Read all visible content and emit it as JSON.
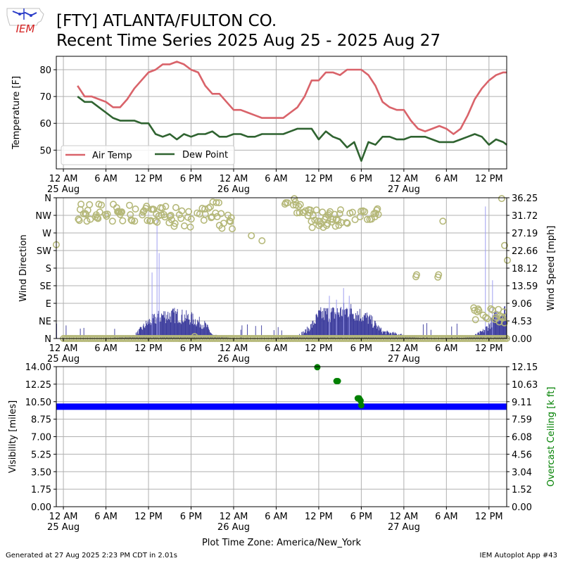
{
  "header": {
    "station_line": "[FTY] ATLANTA/FULTON CO.",
    "range_line": "Recent Time Series 2025 Aug 25 - 2025 Aug 27"
  },
  "logo": {
    "text": "IEM",
    "color": "#d42020"
  },
  "footer": {
    "generated": "Generated at 27 Aug 2025 2:23 PM CDT in 2.01s",
    "app": "IEM Autoplot App #43",
    "timezone_label": "Plot Time Zone: America/New_York"
  },
  "colors": {
    "temp": "#d9636a",
    "dew": "#2f6330",
    "wind_bar": "#3a3a9c",
    "gust_line": "#9f9ff0",
    "wind_dir": "#b5b879",
    "visibility": "#0000ff",
    "ceiling": "#008000",
    "grid": "#b0b0b0"
  },
  "x_axis": {
    "tick_labels": [
      "12 AM",
      "6 AM",
      "12 PM",
      "6 PM",
      "12 AM",
      "6 AM",
      "12 PM",
      "6 PM",
      "12 AM",
      "6 AM",
      "12 PM"
    ],
    "day_labels": [
      "25 Aug",
      "26 Aug",
      "27 Aug"
    ]
  },
  "chart_data": [
    {
      "type": "line",
      "ylabel": "Temperature [F]",
      "ylim": [
        43,
        85
      ],
      "yticks": [
        "50",
        "60",
        "70",
        "80"
      ],
      "xlim_hours": [
        -1,
        62.5
      ],
      "grid": true,
      "legend": "lower-left",
      "series": [
        {
          "name": "Air Temp",
          "x": [
            2,
            3,
            4,
            5,
            6,
            7,
            8,
            9,
            10,
            11,
            12,
            13,
            14,
            15,
            16,
            17,
            18,
            19,
            20,
            21,
            22,
            23,
            24,
            25,
            26,
            27,
            28,
            29,
            30,
            31,
            32,
            33,
            34,
            35,
            36,
            37,
            38,
            39,
            40,
            41,
            42,
            43,
            44,
            45,
            46,
            47,
            48,
            49,
            50,
            51,
            52,
            53,
            54,
            55,
            56,
            57,
            58,
            59,
            60,
            61,
            62,
            62.5
          ],
          "values": [
            74,
            70,
            70,
            69,
            68,
            66,
            66,
            69,
            73,
            76,
            79,
            80,
            82,
            82,
            83,
            82,
            80,
            79,
            74,
            71,
            71,
            68,
            65,
            65,
            64,
            63,
            62,
            62,
            62,
            62,
            64,
            66,
            70,
            76,
            76,
            79,
            79,
            78,
            80,
            80,
            80,
            78,
            74,
            68,
            66,
            65,
            65,
            61,
            58,
            57,
            58,
            59,
            58,
            56,
            58,
            63,
            69,
            73,
            76,
            78,
            79,
            79
          ]
        },
        {
          "name": "Dew Point",
          "x": [
            2,
            3,
            4,
            5,
            6,
            7,
            8,
            9,
            10,
            11,
            12,
            13,
            14,
            15,
            16,
            17,
            18,
            19,
            20,
            21,
            22,
            23,
            24,
            25,
            26,
            27,
            28,
            29,
            30,
            31,
            32,
            33,
            34,
            35,
            36,
            37,
            38,
            39,
            40,
            41,
            42,
            43,
            44,
            45,
            46,
            47,
            48,
            49,
            50,
            51,
            52,
            53,
            54,
            55,
            56,
            57,
            58,
            59,
            60,
            61,
            62,
            62.5
          ],
          "values": [
            70,
            68,
            68,
            66,
            64,
            62,
            61,
            61,
            61,
            60,
            60,
            56,
            55,
            56,
            54,
            56,
            55,
            56,
            56,
            57,
            55,
            55,
            56,
            56,
            55,
            55,
            56,
            56,
            56,
            56,
            57,
            58,
            58,
            58,
            54,
            57,
            55,
            54,
            51,
            53,
            46,
            53,
            52,
            55,
            55,
            54,
            54,
            55,
            55,
            55,
            54,
            53,
            53,
            53,
            54,
            55,
            56,
            55,
            52,
            54,
            53,
            52
          ]
        }
      ]
    },
    {
      "type": "scatter",
      "ylabel": "Wind Direction",
      "y2label": "Wind Speed [mph]",
      "ylim": [
        0,
        360
      ],
      "yticks": [
        "N",
        "NE",
        "E",
        "SE",
        "S",
        "SW",
        "W",
        "NW",
        "N"
      ],
      "y2lim": [
        0,
        36.25
      ],
      "y2ticks": [
        "0.00",
        "4.53",
        "9.06",
        "13.59",
        "18.12",
        "22.66",
        "27.19",
        "31.72",
        "36.25"
      ],
      "grid": true,
      "wind_speed_profile": {
        "x": [
          0,
          6,
          9,
          10,
          11,
          12,
          13,
          14,
          15,
          16,
          17,
          18,
          19,
          20,
          21,
          24,
          30,
          32,
          33,
          34,
          35,
          36,
          37,
          38,
          39,
          40,
          41,
          42,
          43,
          45,
          51,
          55,
          57,
          58,
          59,
          60,
          61,
          62,
          62.5
        ],
        "values": [
          0,
          0,
          0.5,
          1,
          3,
          5,
          6,
          7,
          7,
          7,
          6.5,
          6,
          5,
          4,
          1,
          0,
          0,
          0.5,
          1,
          2,
          4,
          7,
          7.5,
          7.5,
          8,
          8.5,
          8,
          7,
          6,
          2,
          0,
          0,
          0.5,
          1,
          2,
          4,
          7,
          8,
          8
        ]
      },
      "wind_gusts": [
        {
          "x": 12.5,
          "speed": 17
        },
        {
          "x": 13.2,
          "speed": 31
        },
        {
          "x": 13.5,
          "speed": 22
        },
        {
          "x": 37.5,
          "speed": 11
        },
        {
          "x": 38.5,
          "speed": 10
        },
        {
          "x": 39.5,
          "speed": 13
        },
        {
          "x": 40.3,
          "speed": 11
        },
        {
          "x": 59.5,
          "speed": 34
        },
        {
          "x": 60.5,
          "speed": 15
        }
      ],
      "wind_dir_segments": [
        {
          "x": [
            2,
            12.5
          ],
          "range": [
            300,
            345
          ]
        },
        {
          "x": [
            12.5,
            20
          ],
          "range": [
            280,
            340
          ]
        },
        {
          "x": [
            20,
            22
          ],
          "range": [
            300,
            350
          ]
        },
        {
          "x": [
            22,
            24
          ],
          "range": [
            280,
            320
          ]
        },
        {
          "x": [
            31,
            34
          ],
          "range": [
            320,
            360
          ]
        },
        {
          "x": [
            34,
            38
          ],
          "range": [
            270,
            330
          ]
        },
        {
          "x": [
            38,
            42
          ],
          "range": [
            285,
            330
          ]
        },
        {
          "x": [
            42,
            44.5
          ],
          "range": [
            300,
            335
          ]
        },
        {
          "x": [
            57.5,
            62.5
          ],
          "range": [
            40,
            80
          ]
        }
      ],
      "calm_points": {
        "x": [
          0,
          62.5
        ],
        "dir": 0
      },
      "wind_dir_extra": [
        {
          "x": -1,
          "dir": 240
        },
        {
          "x": 18.5,
          "dir": 5
        },
        {
          "x": 26.5,
          "dir": 263
        },
        {
          "x": 28,
          "dir": 250
        },
        {
          "x": 49.7,
          "dir": 158
        },
        {
          "x": 49.8,
          "dir": 163
        },
        {
          "x": 52.8,
          "dir": 157
        },
        {
          "x": 52.9,
          "dir": 163
        },
        {
          "x": 53.5,
          "dir": 300
        },
        {
          "x": 61.8,
          "dir": 358
        },
        {
          "x": 62.2,
          "dir": 238
        },
        {
          "x": 62.6,
          "dir": 200
        }
      ]
    },
    {
      "type": "scatter",
      "ylabel": "Visibility [miles]",
      "y2label": "Overcast Ceiling [k ft]",
      "ylim": [
        0,
        14
      ],
      "yticks": [
        "0.00",
        "1.75",
        "3.50",
        "5.25",
        "7.00",
        "8.75",
        "10.50",
        "12.25",
        "14.00"
      ],
      "y2lim": [
        0,
        12.15
      ],
      "y2ticks": [
        "0.00",
        "1.52",
        "3.04",
        "4.56",
        "6.08",
        "7.59",
        "9.11",
        "10.63",
        "12.15"
      ],
      "grid": true,
      "visibility": {
        "x": [
          -1,
          62.5
        ],
        "value": 10
      },
      "ceiling": {
        "x": [
          35.8,
          38.5,
          38.7,
          41.5,
          41.7,
          41.9,
          42.0
        ],
        "values": [
          12.1,
          10.9,
          10.9,
          9.4,
          9.4,
          9.2,
          8.8
        ]
      }
    }
  ]
}
